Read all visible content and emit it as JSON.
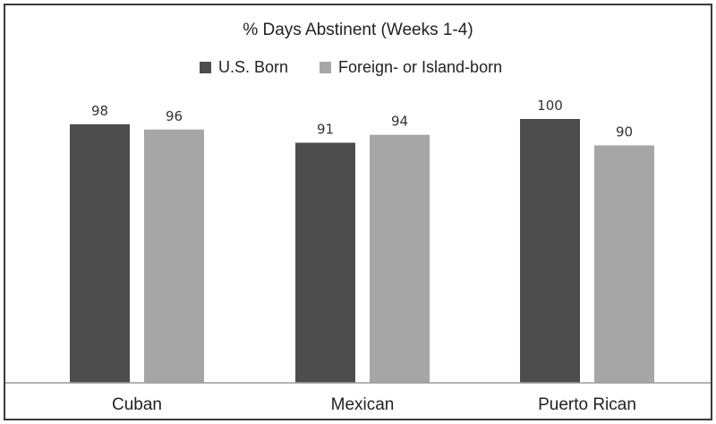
{
  "chart_data": {
    "type": "bar",
    "title": "% Days Abstinent (Weeks 1-4)",
    "categories": [
      "Cuban",
      "Mexican",
      "Puerto Rican"
    ],
    "series": [
      {
        "name": "U.S. Born",
        "values": [
          98,
          91,
          100
        ],
        "color": "#4d4d4d"
      },
      {
        "name": "Foreign- or Island-born",
        "values": [
          96,
          94,
          90
        ],
        "color": "#a6a6a6"
      }
    ],
    "ylim": [
      0,
      100
    ],
    "grid": false,
    "legend_position": "top-center",
    "data_labels": true
  }
}
